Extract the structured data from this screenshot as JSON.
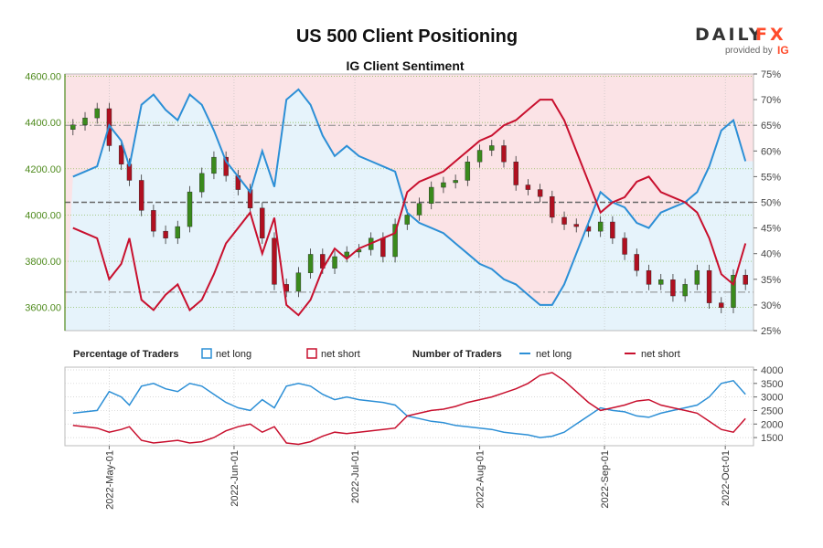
{
  "brand": {
    "name_left": "DAILY",
    "name_right": "FX",
    "provided_by": "provided by",
    "ig": "IG"
  },
  "chart_data": [
    {
      "type": "line",
      "title": "US 500 Client Positioning",
      "subtitle": "IG Client Sentiment",
      "price_axis": {
        "ticks": [
          "4600.00",
          "4400.00",
          "4200.00",
          "4000.00",
          "3800.00",
          "3600.00"
        ],
        "range": [
          3500,
          4610
        ]
      },
      "percent_axis": {
        "ticks": [
          "75%",
          "70%",
          "65%",
          "60%",
          "55%",
          "50%",
          "45%",
          "40%",
          "35%",
          "30%",
          "25%"
        ],
        "range": [
          25,
          75
        ]
      },
      "date_ticks": [
        "2022-May-01",
        "2022-Jun-01",
        "2022-Jul-01",
        "2022-Aug-01",
        "2022-Sep-01",
        "2022-Oct-01"
      ],
      "reference_lines_percent": [
        65,
        50,
        32.5
      ],
      "net_long_percent": {
        "dates": [
          "2022-04-22",
          "2022-04-25",
          "2022-04-28",
          "2022-05-01",
          "2022-05-04",
          "2022-05-06",
          "2022-05-09",
          "2022-05-12",
          "2022-05-15",
          "2022-05-18",
          "2022-05-21",
          "2022-05-24",
          "2022-05-27",
          "2022-05-30",
          "2022-06-02",
          "2022-06-05",
          "2022-06-08",
          "2022-06-11",
          "2022-06-14",
          "2022-06-17",
          "2022-06-20",
          "2022-06-23",
          "2022-06-26",
          "2022-06-29",
          "2022-07-02",
          "2022-07-05",
          "2022-07-08",
          "2022-07-11",
          "2022-07-14",
          "2022-07-17",
          "2022-07-20",
          "2022-07-23",
          "2022-07-26",
          "2022-07-29",
          "2022-08-01",
          "2022-08-04",
          "2022-08-07",
          "2022-08-10",
          "2022-08-13",
          "2022-08-16",
          "2022-08-19",
          "2022-08-22",
          "2022-08-25",
          "2022-08-28",
          "2022-08-31",
          "2022-09-03",
          "2022-09-06",
          "2022-09-09",
          "2022-09-12",
          "2022-09-15",
          "2022-09-18",
          "2022-09-21",
          "2022-09-24",
          "2022-09-27",
          "2022-09-30",
          "2022-10-03",
          "2022-10-06"
        ],
        "values": [
          55,
          56,
          57,
          65,
          62,
          57,
          69,
          71,
          68,
          66,
          71,
          69,
          64,
          58,
          55,
          52,
          60,
          53,
          70,
          72,
          69,
          63,
          59,
          61,
          59,
          58,
          57,
          56,
          48,
          46,
          45,
          44,
          42,
          40,
          38,
          37,
          35,
          34,
          32,
          30,
          30,
          34,
          40,
          46,
          52,
          50,
          49,
          46,
          45,
          48,
          49,
          50,
          52,
          57,
          64,
          66,
          58
        ]
      },
      "net_short_percent": {
        "dates": [
          "2022-04-22",
          "2022-04-25",
          "2022-04-28",
          "2022-05-01",
          "2022-05-04",
          "2022-05-06",
          "2022-05-09",
          "2022-05-12",
          "2022-05-15",
          "2022-05-18",
          "2022-05-21",
          "2022-05-24",
          "2022-05-27",
          "2022-05-30",
          "2022-06-02",
          "2022-06-05",
          "2022-06-08",
          "2022-06-11",
          "2022-06-14",
          "2022-06-17",
          "2022-06-20",
          "2022-06-23",
          "2022-06-26",
          "2022-06-29",
          "2022-07-02",
          "2022-07-05",
          "2022-07-08",
          "2022-07-11",
          "2022-07-14",
          "2022-07-17",
          "2022-07-20",
          "2022-07-23",
          "2022-07-26",
          "2022-07-29",
          "2022-08-01",
          "2022-08-04",
          "2022-08-07",
          "2022-08-10",
          "2022-08-13",
          "2022-08-16",
          "2022-08-19",
          "2022-08-22",
          "2022-08-25",
          "2022-08-28",
          "2022-08-31",
          "2022-09-03",
          "2022-09-06",
          "2022-09-09",
          "2022-09-12",
          "2022-09-15",
          "2022-09-18",
          "2022-09-21",
          "2022-09-24",
          "2022-09-27",
          "2022-09-30",
          "2022-10-03",
          "2022-10-06"
        ],
        "values": [
          45,
          44,
          43,
          35,
          38,
          43,
          31,
          29,
          32,
          34,
          29,
          31,
          36,
          42,
          45,
          48,
          40,
          47,
          30,
          28,
          31,
          37,
          41,
          39,
          41,
          42,
          43,
          44,
          52,
          54,
          55,
          56,
          58,
          60,
          62,
          63,
          65,
          66,
          68,
          70,
          70,
          66,
          60,
          54,
          48,
          50,
          51,
          54,
          55,
          52,
          51,
          50,
          48,
          43,
          36,
          34,
          42
        ]
      },
      "price_ohlc": {
        "dates": [
          "2022-04-22",
          "2022-04-25",
          "2022-04-28",
          "2022-05-01",
          "2022-05-04",
          "2022-05-06",
          "2022-05-09",
          "2022-05-12",
          "2022-05-15",
          "2022-05-18",
          "2022-05-21",
          "2022-05-24",
          "2022-05-27",
          "2022-05-30",
          "2022-06-02",
          "2022-06-05",
          "2022-06-08",
          "2022-06-11",
          "2022-06-14",
          "2022-06-17",
          "2022-06-20",
          "2022-06-23",
          "2022-06-26",
          "2022-06-29",
          "2022-07-02",
          "2022-07-05",
          "2022-07-08",
          "2022-07-11",
          "2022-07-14",
          "2022-07-17",
          "2022-07-20",
          "2022-07-23",
          "2022-07-26",
          "2022-07-29",
          "2022-08-01",
          "2022-08-04",
          "2022-08-07",
          "2022-08-10",
          "2022-08-13",
          "2022-08-16",
          "2022-08-19",
          "2022-08-22",
          "2022-08-25",
          "2022-08-28",
          "2022-08-31",
          "2022-09-03",
          "2022-09-06",
          "2022-09-09",
          "2022-09-12",
          "2022-09-15",
          "2022-09-18",
          "2022-09-21",
          "2022-09-24",
          "2022-09-27",
          "2022-09-30",
          "2022-10-03",
          "2022-10-06"
        ],
        "close": [
          4390,
          4420,
          4460,
          4300,
          4220,
          4150,
          4020,
          3930,
          3900,
          3950,
          4100,
          4180,
          4250,
          4170,
          4110,
          4030,
          3900,
          3700,
          3670,
          3750,
          3830,
          3770,
          3820,
          3840,
          3850,
          3900,
          3820,
          3960,
          4000,
          4050,
          4120,
          4140,
          4150,
          4230,
          4280,
          4300,
          4230,
          4130,
          4110,
          4080,
          3990,
          3960,
          3950,
          3930,
          3970,
          3900,
          3830,
          3760,
          3700,
          3720,
          3650,
          3700,
          3760,
          3620,
          3600,
          3740,
          3700
        ]
      },
      "number_of_traders": {
        "axis_ticks": [
          "4000",
          "3500",
          "3000",
          "2500",
          "2000",
          "1500"
        ],
        "axis_range": [
          1200,
          4100
        ],
        "net_long": [
          2400,
          2450,
          2500,
          3200,
          3000,
          2700,
          3400,
          3500,
          3300,
          3200,
          3500,
          3400,
          3100,
          2800,
          2600,
          2500,
          2900,
          2600,
          3400,
          3500,
          3400,
          3100,
          2900,
          3000,
          2900,
          2850,
          2800,
          2700,
          2300,
          2200,
          2100,
          2050,
          1950,
          1900,
          1850,
          1800,
          1700,
          1650,
          1600,
          1500,
          1550,
          1700,
          2000,
          2300,
          2600,
          2500,
          2450,
          2300,
          2250,
          2400,
          2500,
          2600,
          2700,
          3000,
          3500,
          3600,
          3100
        ],
        "net_short": [
          1950,
          1900,
          1850,
          1700,
          1800,
          1900,
          1400,
          1300,
          1350,
          1400,
          1300,
          1350,
          1500,
          1750,
          1900,
          2000,
          1700,
          1900,
          1300,
          1250,
          1350,
          1550,
          1700,
          1650,
          1700,
          1750,
          1800,
          1850,
          2300,
          2400,
          2500,
          2550,
          2650,
          2800,
          2900,
          3000,
          3150,
          3300,
          3500,
          3800,
          3900,
          3600,
          3200,
          2800,
          2500,
          2600,
          2700,
          2850,
          2900,
          2700,
          2600,
          2500,
          2400,
          2100,
          1800,
          1700,
          2200
        ]
      },
      "legend": {
        "pct_head": "Percentage of Traders",
        "pct_long": "net long",
        "pct_short": "net short",
        "num_head": "Number of Traders",
        "num_long": "net long",
        "num_short": "net short"
      },
      "colors": {
        "long": "#2c8fd6",
        "short": "#c8102e",
        "long_fill": "#e6f3fb",
        "short_fill": "#fbe3e6",
        "price_axis": "#4e8a1c",
        "up_candle": "#3a8a1c",
        "down_candle": "#b01020"
      }
    }
  ]
}
